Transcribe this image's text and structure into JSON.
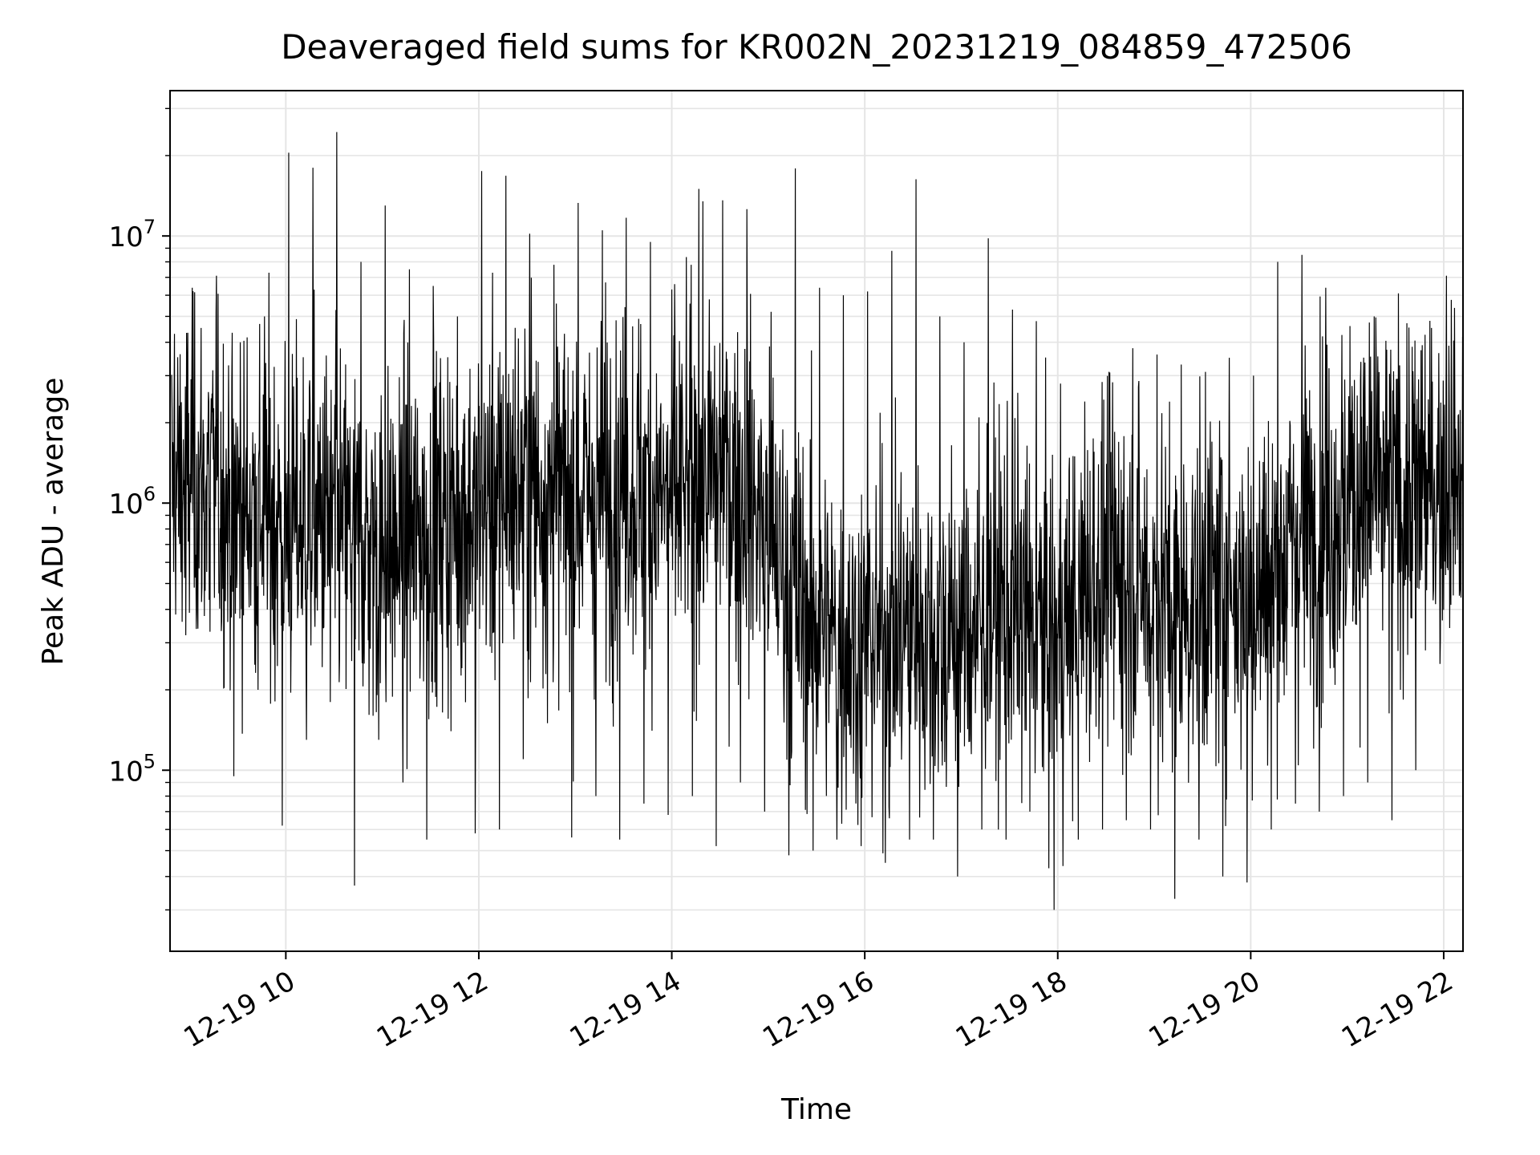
{
  "chart_data": {
    "type": "line",
    "title": "Deaveraged field sums for KR002N_20231219_084859_472506",
    "xlabel": "Time",
    "ylabel": "Peak ADU - average",
    "x_tick_labels": [
      "12-19 10",
      "12-19 12",
      "12-19 14",
      "12-19 16",
      "12-19 18",
      "12-19 20",
      "12-19 22"
    ],
    "x_ticks": [
      "2023-12-19 10:00",
      "2023-12-19 12:00",
      "2023-12-19 14:00",
      "2023-12-19 16:00",
      "2023-12-19 18:00",
      "2023-12-19 20:00",
      "2023-12-19 22:00"
    ],
    "xlim": [
      "2023-12-19 08:48",
      "2023-12-19 22:12"
    ],
    "y_scale": "log",
    "y_tick_labels": [
      {
        "base": "10",
        "exp": "5",
        "value": 100000
      },
      {
        "base": "10",
        "exp": "6",
        "value": 1000000
      },
      {
        "base": "10",
        "exp": "7",
        "value": 10000000
      }
    ],
    "ylim": [
      21000,
      35000000
    ],
    "grid": true,
    "series": [
      {
        "color": "#000000",
        "x": [
          "2023-12-19 08:49",
          "2023-12-19 09:00",
          "2023-12-19 09:15",
          "2023-12-19 09:30",
          "2023-12-19 09:45",
          "2023-12-19 10:00",
          "2023-12-19 10:15",
          "2023-12-19 10:30",
          "2023-12-19 10:45",
          "2023-12-19 11:00",
          "2023-12-19 11:15",
          "2023-12-19 11:30",
          "2023-12-19 11:45",
          "2023-12-19 12:00",
          "2023-12-19 12:15",
          "2023-12-19 12:30",
          "2023-12-19 12:45",
          "2023-12-19 13:00",
          "2023-12-19 13:15",
          "2023-12-19 13:30",
          "2023-12-19 13:45",
          "2023-12-19 14:00",
          "2023-12-19 14:15",
          "2023-12-19 14:30",
          "2023-12-19 14:45",
          "2023-12-19 15:00",
          "2023-12-19 15:15",
          "2023-12-19 15:30",
          "2023-12-19 15:45",
          "2023-12-19 16:00",
          "2023-12-19 16:15",
          "2023-12-19 16:30",
          "2023-12-19 16:45",
          "2023-12-19 17:00",
          "2023-12-19 17:15",
          "2023-12-19 17:30",
          "2023-12-19 17:45",
          "2023-12-19 18:00",
          "2023-12-19 18:15",
          "2023-12-19 18:30",
          "2023-12-19 18:45",
          "2023-12-19 19:00",
          "2023-12-19 19:15",
          "2023-12-19 19:30",
          "2023-12-19 19:45",
          "2023-12-19 20:00",
          "2023-12-19 20:15",
          "2023-12-19 20:30",
          "2023-12-19 20:45",
          "2023-12-19 21:00",
          "2023-12-19 21:15",
          "2023-12-19 21:30",
          "2023-12-19 21:45",
          "2023-12-19 22:00",
          "2023-12-19 22:12"
        ],
        "y_center": [
          1100000,
          1200000,
          1100000,
          950000,
          1000000,
          800000,
          900000,
          850000,
          700000,
          650000,
          700000,
          800000,
          900000,
          950000,
          1100000,
          1200000,
          1100000,
          1000000,
          1100000,
          1200000,
          1100000,
          1000000,
          1200000,
          1300000,
          1100000,
          800000,
          450000,
          350000,
          300000,
          300000,
          320000,
          350000,
          300000,
          320000,
          400000,
          420000,
          350000,
          300000,
          450000,
          600000,
          550000,
          450000,
          400000,
          450000,
          500000,
          450000,
          550000,
          750000,
          900000,
          1000000,
          1100000,
          1000000,
          1100000,
          1300000,
          1400000
        ],
        "y_peak": [
          4300000,
          6400000,
          7100000,
          4000000,
          5000000,
          20500000,
          18000000,
          24500000,
          8000000,
          13000000,
          7500000,
          6500000,
          5000000,
          17500000,
          16800000,
          10200000,
          7800000,
          13300000,
          10500000,
          11700000,
          9500000,
          6600000,
          15000000,
          13600000,
          12600000,
          5200000,
          17900000,
          6400000,
          6000000,
          6200000,
          8800000,
          16300000,
          5000000,
          4000000,
          9800000,
          5300000,
          4800000,
          2800000,
          2400000,
          3100000,
          3800000,
          3600000,
          3300000,
          3100000,
          3500000,
          3000000,
          8000000,
          8500000,
          6400000,
          4600000,
          5000000,
          6100000,
          3900000,
          7100000,
          4700000
        ],
        "y_trough": [
          380000,
          320000,
          330000,
          95000,
          200000,
          62000,
          130000,
          180000,
          37000,
          130000,
          90000,
          55000,
          140000,
          58000,
          60000,
          110000,
          150000,
          56000,
          80000,
          55000,
          75000,
          68000,
          80000,
          52000,
          90000,
          70000,
          48000,
          50000,
          55000,
          52000,
          45000,
          55000,
          55000,
          40000,
          60000,
          55000,
          70000,
          30000,
          55000,
          60000,
          65000,
          60000,
          33000,
          55000,
          40000,
          38000,
          60000,
          75000,
          70000,
          80000,
          90000,
          65000,
          100000,
          250000,
          450000
        ]
      }
    ]
  }
}
